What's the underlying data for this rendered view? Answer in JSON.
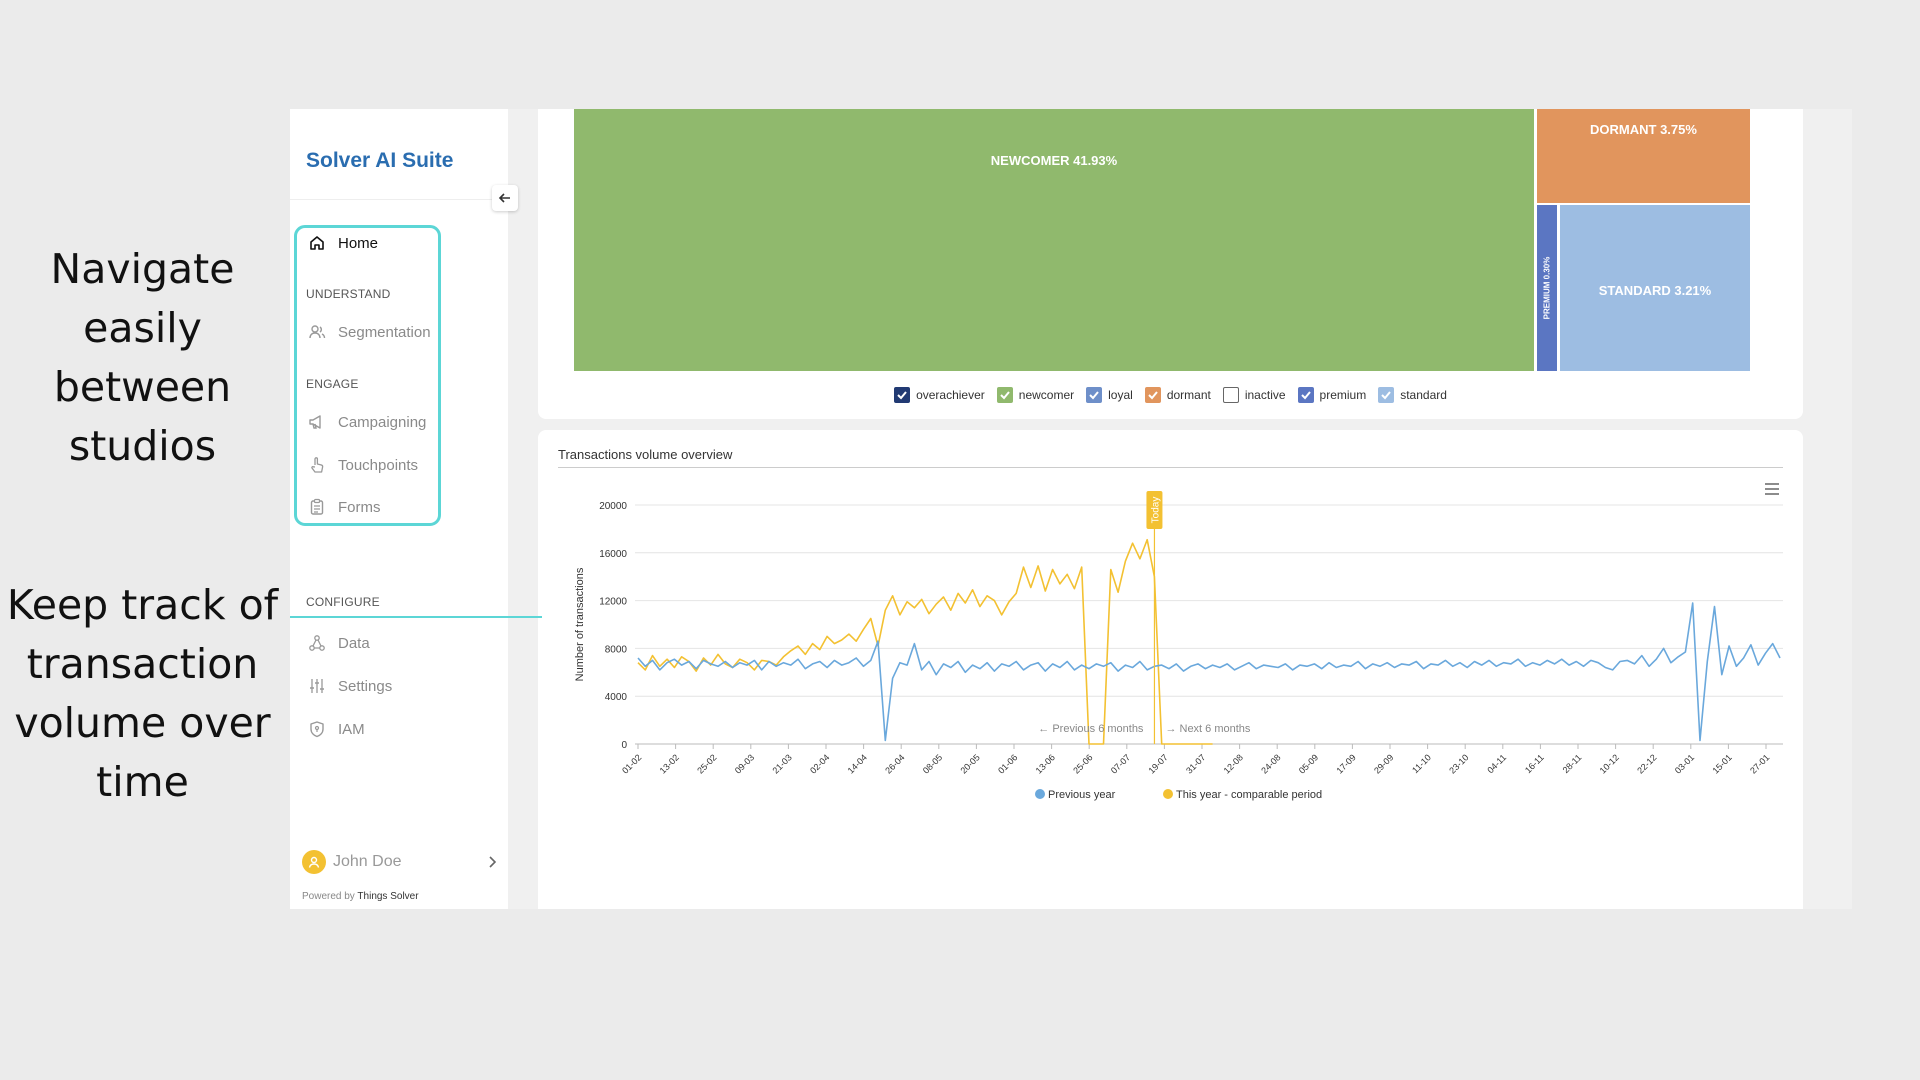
{
  "captions": {
    "nav": "Navigate easily between studios",
    "track": "Keep track of transaction volume over time"
  },
  "sidebar": {
    "brand": "Solver AI Suite",
    "home": "Home",
    "section_understand": "UNDERSTAND",
    "segmentation": "Segmentation",
    "section_engage": "ENGAGE",
    "campaigning": "Campaigning",
    "touchpoints": "Touchpoints",
    "forms": "Forms",
    "section_configure": "CONFIGURE",
    "data": "Data",
    "settings": "Settings",
    "iam": "IAM",
    "user_name": "John Doe",
    "powered_prefix": "Powered by",
    "powered_brand": "Things Solver"
  },
  "treemap": {
    "newcomer": "NEWCOMER 41.93%",
    "dormant": "DORMANT 3.75%",
    "premium": "PREMIUM 0.30%",
    "standard": "STANDARD 3.21%",
    "legend": [
      {
        "label": "overachiever",
        "checked": true,
        "color": "#213a73"
      },
      {
        "label": "newcomer",
        "checked": true,
        "color": "#90b96d"
      },
      {
        "label": "loyal",
        "checked": true,
        "color": "#6e8fc9"
      },
      {
        "label": "dormant",
        "checked": true,
        "color": "#e1955d"
      },
      {
        "label": "inactive",
        "checked": false,
        "color": "#ffffff"
      },
      {
        "label": "premium",
        "checked": true,
        "color": "#5b76c2"
      },
      {
        "label": "standard",
        "checked": true,
        "color": "#9dbde2"
      }
    ]
  },
  "chart_data": {
    "type": "line",
    "title": "Transactions volume overview",
    "ylabel": "Number of transactions",
    "xlabel": "",
    "ylim": [
      0,
      20000
    ],
    "yticks": [
      0,
      4000,
      8000,
      12000,
      16000,
      20000
    ],
    "x_tick_labels": [
      "01-02",
      "13-02",
      "25-02",
      "09-03",
      "21-03",
      "02-04",
      "14-04",
      "26-04",
      "08-05",
      "20-05",
      "01-06",
      "13-06",
      "25-06",
      "07-07",
      "19-07",
      "31-07",
      "12-08",
      "24-08",
      "05-09",
      "17-09",
      "29-09",
      "11-10",
      "23-10",
      "04-11",
      "16-11",
      "28-11",
      "10-12",
      "22-12",
      "03-01",
      "15-01",
      "27-01"
    ],
    "annotations": {
      "today": "Today",
      "previous": "← Previous 6 months",
      "next": "→ Next 6 months"
    },
    "series": [
      {
        "name": "Previous year",
        "color": "#6aa8dc",
        "values": [
          7200,
          6500,
          7000,
          6200,
          6800,
          7100,
          6600,
          6900,
          6300,
          7000,
          6700,
          6500,
          6900,
          6400,
          6800,
          6600,
          7000,
          6200,
          6900,
          6500,
          6800,
          6600,
          7100,
          6300,
          6700,
          6900,
          6400,
          7000,
          6600,
          6800,
          7200,
          6500,
          7000,
          8600,
          300,
          5500,
          6800,
          6600,
          8400,
          6200,
          6900,
          5800,
          6700,
          6400,
          6900,
          6000,
          6600,
          6300,
          6800,
          6100,
          6700,
          6500,
          6900,
          6200,
          6600,
          6800,
          6100,
          6700,
          6400,
          6900,
          6200,
          6600,
          6300,
          6700,
          6500,
          6800,
          6100,
          6600,
          6400,
          6900,
          6200,
          6500,
          6600,
          6300,
          6700,
          6100,
          6500,
          6700,
          6300,
          6600,
          6400,
          6700,
          6200,
          6500,
          6800,
          6300,
          6600,
          6500,
          6400,
          6700,
          6200,
          6600,
          6500,
          6700,
          6300,
          6800,
          6400,
          6600,
          6500,
          6900,
          6300,
          6700,
          6500,
          6800,
          6400,
          6700,
          6600,
          6900,
          6300,
          6700,
          6600,
          7000,
          6500,
          6800,
          6400,
          6900,
          6600,
          7000,
          6500,
          6800,
          6700,
          7100,
          6500,
          6800,
          6600,
          7000,
          6700,
          7100,
          6600,
          6900,
          6500,
          7000,
          6800,
          6400,
          6200,
          6900,
          7000,
          6700,
          7400,
          6500,
          7100,
          8000,
          6800,
          7300,
          7700,
          11800,
          300,
          6900,
          11500,
          5800,
          8200,
          6500,
          7200,
          8300,
          6600,
          7600,
          8400,
          7200
        ]
      },
      {
        "name": "This year - comparable period",
        "color": "#f3c132",
        "values": [
          6800,
          6200,
          7400,
          6500,
          7100,
          6400,
          7300,
          6900,
          6100,
          7200,
          6600,
          7500,
          6700,
          6400,
          7100,
          6800,
          6200,
          7000,
          6900,
          6600,
          7300,
          7800,
          8200,
          7500,
          8400,
          7900,
          9000,
          8400,
          8700,
          9200,
          8600,
          9600,
          10500,
          8200,
          11200,
          12400,
          10800,
          11900,
          11400,
          12100,
          10900,
          11700,
          12300,
          11200,
          12600,
          11800,
          12900,
          11500,
          12400,
          12000,
          10800,
          11900,
          12600,
          14800,
          13100,
          14900,
          12800,
          14600,
          13400,
          14200,
          13000,
          14800,
          0,
          0,
          0,
          14600,
          12700,
          15300,
          16800,
          15500,
          17100,
          14000,
          0,
          0,
          0,
          0,
          0,
          0,
          0,
          0
        ]
      }
    ],
    "legend": [
      "Previous year",
      "This year - comparable period"
    ],
    "legend_position": "bottom-center",
    "grid": true
  }
}
